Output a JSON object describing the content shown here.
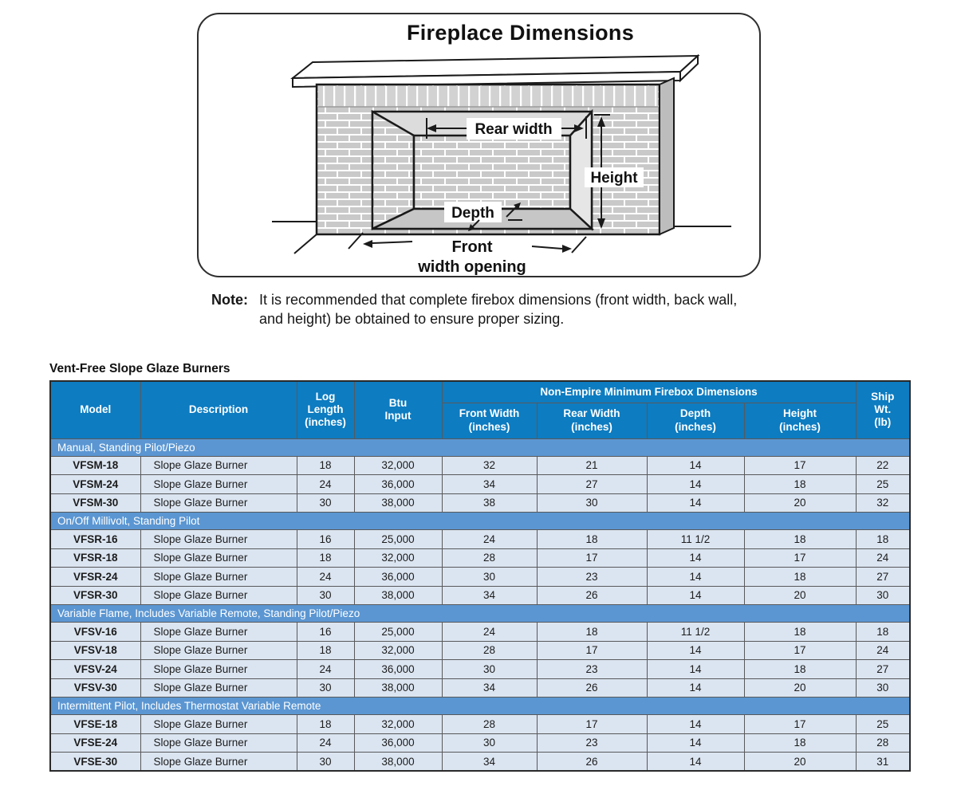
{
  "colors": {
    "header_bg": "#0d7cc1",
    "section_bg": "#5b96d2",
    "row_bg": "#dbe5f1",
    "grid": "#58595b"
  },
  "diagram": {
    "title": "Fireplace Dimensions",
    "labels": {
      "rear_width": "Rear width",
      "height": "Height",
      "depth": "Depth",
      "front_line1": "Front",
      "front_line2": "width opening"
    }
  },
  "note": {
    "label": "Note:",
    "text": "It is recommended that complete firebox dimensions (front width, back wall, and height) be obtained to ensure proper sizing."
  },
  "table": {
    "title": "Vent-Free Slope Glaze Burners",
    "columns": {
      "model": "Model",
      "description": "Description",
      "log_length": "Log\nLength\n(inches)",
      "btu_input": "Btu\nInput",
      "group": "Non-Empire Minimum Firebox Dimensions",
      "front_width": "Front Width\n(inches)",
      "rear_width": "Rear Width\n(inches)",
      "depth": "Depth\n(inches)",
      "height": "Height\n(inches)",
      "ship_wt": "Ship\nWt.\n(lb)"
    },
    "sections": [
      {
        "label": "Manual, Standing Pilot/Piezo",
        "rows": [
          [
            "VFSM-18",
            "Slope Glaze Burner",
            "18",
            "32,000",
            "32",
            "21",
            "14",
            "17",
            "22"
          ],
          [
            "VFSM-24",
            "Slope Glaze Burner",
            "24",
            "36,000",
            "34",
            "27",
            "14",
            "18",
            "25"
          ],
          [
            "VFSM-30",
            "Slope Glaze Burner",
            "30",
            "38,000",
            "38",
            "30",
            "14",
            "20",
            "32"
          ]
        ]
      },
      {
        "label": "On/Off Millivolt, Standing Pilot",
        "rows": [
          [
            "VFSR-16",
            "Slope Glaze Burner",
            "16",
            "25,000",
            "24",
            "18",
            "11 1/2",
            "18",
            "18"
          ],
          [
            "VFSR-18",
            "Slope Glaze Burner",
            "18",
            "32,000",
            "28",
            "17",
            "14",
            "17",
            "24"
          ],
          [
            "VFSR-24",
            "Slope Glaze Burner",
            "24",
            "36,000",
            "30",
            "23",
            "14",
            "18",
            "27"
          ],
          [
            "VFSR-30",
            "Slope Glaze Burner",
            "30",
            "38,000",
            "34",
            "26",
            "14",
            "20",
            "30"
          ]
        ]
      },
      {
        "label": "Variable Flame, Includes Variable Remote, Standing Pilot/Piezo",
        "rows": [
          [
            "VFSV-16",
            "Slope Glaze Burner",
            "16",
            "25,000",
            "24",
            "18",
            "11 1/2",
            "18",
            "18"
          ],
          [
            "VFSV-18",
            "Slope Glaze Burner",
            "18",
            "32,000",
            "28",
            "17",
            "14",
            "17",
            "24"
          ],
          [
            "VFSV-24",
            "Slope Glaze Burner",
            "24",
            "36,000",
            "30",
            "23",
            "14",
            "18",
            "27"
          ],
          [
            "VFSV-30",
            "Slope Glaze Burner",
            "30",
            "38,000",
            "34",
            "26",
            "14",
            "20",
            "30"
          ]
        ]
      },
      {
        "label": "Intermittent Pilot, Includes Thermostat Variable Remote",
        "rows": [
          [
            "VFSE-18",
            "Slope Glaze Burner",
            "18",
            "32,000",
            "28",
            "17",
            "14",
            "17",
            "25"
          ],
          [
            "VFSE-24",
            "Slope Glaze Burner",
            "24",
            "36,000",
            "30",
            "23",
            "14",
            "18",
            "28"
          ],
          [
            "VFSE-30",
            "Slope Glaze Burner",
            "30",
            "38,000",
            "34",
            "26",
            "14",
            "20",
            "31"
          ]
        ]
      }
    ]
  }
}
